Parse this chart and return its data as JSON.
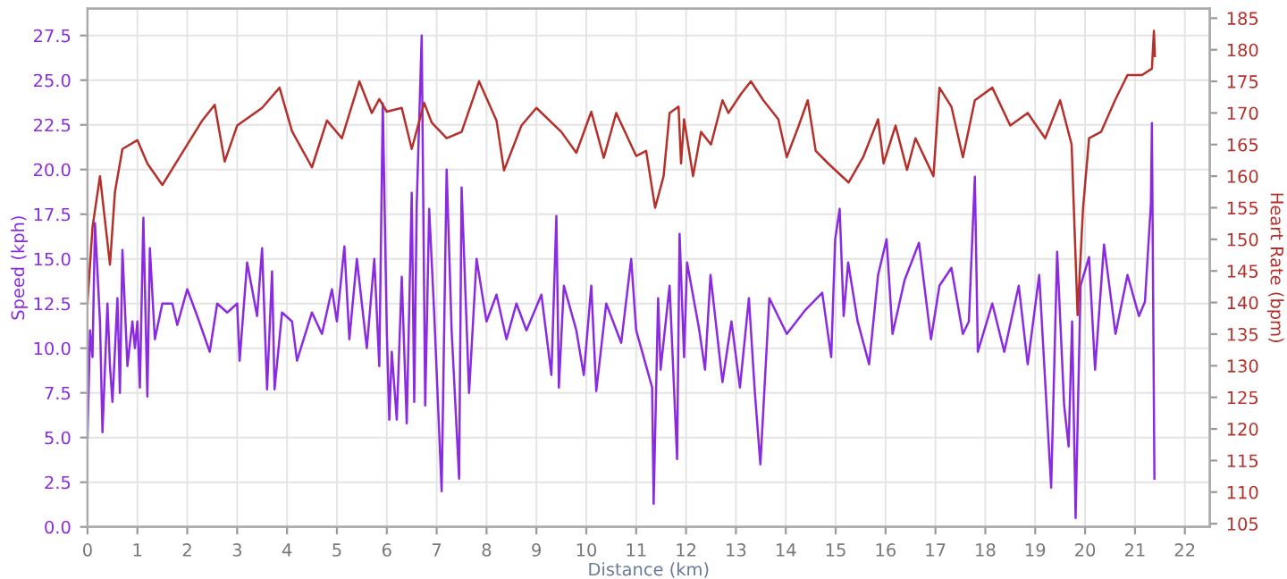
{
  "chart_data": {
    "type": "line",
    "xlabel": "Distance (km)",
    "ylabel": "Speed (kph)",
    "y2label": "Heart Rate (bpm)",
    "xlim": [
      0,
      22.5
    ],
    "xticks": [
      0,
      1,
      2,
      3,
      4,
      5,
      6,
      7,
      8,
      9,
      10,
      11,
      12,
      13,
      14,
      15,
      16,
      17,
      18,
      19,
      20,
      21,
      22
    ],
    "ylim": [
      0,
      29
    ],
    "yticks": [
      {
        "value": 0,
        "label": "0.0"
      },
      2.5,
      {
        "value": 5,
        "label": "5.0"
      },
      7.5,
      {
        "value": 10,
        "label": "10.0"
      },
      12.5,
      {
        "value": 15,
        "label": "15.0"
      },
      17.5,
      {
        "value": 20,
        "label": "20.0"
      },
      22.5,
      {
        "value": 25,
        "label": "25.0"
      },
      27.5
    ],
    "y2lim": [
      104.5,
      186.5
    ],
    "y2ticks": [
      105,
      110,
      115,
      120,
      125,
      130,
      135,
      140,
      145,
      150,
      155,
      160,
      165,
      170,
      175,
      180,
      185
    ],
    "grid": true,
    "legend": false,
    "line_style": "solid",
    "marker": "none",
    "series": [
      {
        "color": "#8a2be2",
        "axis": "y",
        "x": [
          0,
          0.05,
          0.1,
          0.15,
          0.25,
          0.3,
          0.4,
          0.45,
          0.5,
          0.6,
          0.65,
          0.7,
          0.8,
          0.9,
          0.95,
          1.0,
          1.05,
          1.12,
          1.2,
          1.25,
          1.35,
          1.5,
          1.7,
          1.8,
          2.0,
          2.2,
          2.45,
          2.6,
          2.8,
          3.0,
          3.05,
          3.2,
          3.4,
          3.5,
          3.6,
          3.7,
          3.75,
          3.9,
          4.1,
          4.2,
          4.5,
          4.7,
          4.9,
          5.0,
          5.15,
          5.25,
          5.4,
          5.6,
          5.75,
          5.85,
          5.92,
          6.0,
          6.05,
          6.1,
          6.2,
          6.3,
          6.4,
          6.5,
          6.55,
          6.6,
          6.7,
          6.77,
          6.85,
          6.95,
          7.1,
          7.2,
          7.3,
          7.45,
          7.5,
          7.65,
          7.8,
          8.0,
          8.2,
          8.4,
          8.6,
          8.8,
          9.1,
          9.3,
          9.4,
          9.45,
          9.55,
          9.8,
          9.95,
          10.1,
          10.2,
          10.4,
          10.7,
          10.9,
          11.0,
          11.32,
          11.35,
          11.44,
          11.49,
          11.67,
          11.82,
          11.87,
          11.96,
          12.02,
          12.26,
          12.38,
          12.49,
          12.73,
          12.91,
          13.08,
          13.26,
          13.38,
          13.49,
          13.67,
          14.02,
          14.38,
          14.73,
          14.91,
          14.99,
          15.08,
          15.16,
          15.25,
          15.44,
          15.67,
          15.85,
          16.02,
          16.14,
          16.38,
          16.67,
          16.91,
          17.08,
          17.32,
          17.55,
          17.67,
          17.79,
          17.85,
          18.14,
          18.38,
          18.67,
          18.85,
          19.08,
          19.32,
          19.44,
          19.58,
          19.67,
          19.74,
          19.81,
          19.91,
          20.08,
          20.2,
          20.38,
          20.61,
          20.85,
          21.08,
          21.2,
          21.32,
          21.34,
          21.39
        ],
        "values": [
          5,
          11,
          9.5,
          17,
          11.5,
          5.3,
          12.5,
          9,
          7,
          12.8,
          7.5,
          15.5,
          9,
          11.5,
          10,
          11.5,
          7.8,
          17.3,
          7.3,
          15.6,
          10.5,
          12.5,
          12.5,
          11.3,
          13.3,
          11.8,
          9.8,
          12.5,
          12,
          12.5,
          9.3,
          14.8,
          11.8,
          15.6,
          7.7,
          14.3,
          7.7,
          12,
          11.5,
          9.3,
          12,
          10.8,
          13.3,
          11.5,
          15.7,
          10.5,
          15,
          10,
          15,
          9,
          23.7,
          11,
          6,
          9.8,
          6,
          14,
          5.8,
          18.7,
          7,
          18,
          27.5,
          6.8,
          17.8,
          12,
          2,
          20,
          11,
          2.7,
          19,
          7.5,
          15,
          11.5,
          13,
          10.5,
          12.5,
          11,
          13,
          8.5,
          17.4,
          7.8,
          13.5,
          11,
          8.5,
          13.5,
          7.6,
          12.5,
          10.3,
          15,
          11,
          7.8,
          1.3,
          12.8,
          8.8,
          13.5,
          3.8,
          16.4,
          9.5,
          14.8,
          11.1,
          8.8,
          14.1,
          8.1,
          11.5,
          7.8,
          12.8,
          7.5,
          3.5,
          12.8,
          10.8,
          12.1,
          13.1,
          9.5,
          16.1,
          17.8,
          11.8,
          14.8,
          11.5,
          9.1,
          14.1,
          16.1,
          10.8,
          13.8,
          15.9,
          10.5,
          13.5,
          14.5,
          10.8,
          11.5,
          19.6,
          9.8,
          12.5,
          9.8,
          13.5,
          9.1,
          14.1,
          2.2,
          15.4,
          6.8,
          4.5,
          11.5,
          0.5,
          13.5,
          15.1,
          8.8,
          15.8,
          10.8,
          14.1,
          11.8,
          12.6,
          18.1,
          22.6,
          2.7
        ]
      },
      {
        "color": "#b5302a",
        "axis": "y2",
        "x": [
          0,
          0.1,
          0.25,
          0.45,
          0.55,
          0.7,
          1.0,
          1.2,
          1.5,
          2.0,
          2.3,
          2.55,
          2.75,
          3.0,
          3.5,
          3.85,
          4.1,
          4.5,
          4.8,
          5.1,
          5.45,
          5.7,
          5.85,
          6.0,
          6.3,
          6.5,
          6.75,
          6.9,
          7.2,
          7.5,
          7.85,
          8.2,
          8.35,
          8.7,
          9.0,
          9.5,
          9.8,
          10.1,
          10.35,
          10.6,
          11.0,
          11.2,
          11.38,
          11.55,
          11.67,
          11.85,
          11.9,
          11.96,
          12.14,
          12.3,
          12.5,
          12.73,
          12.85,
          13.1,
          13.3,
          13.55,
          13.85,
          14.02,
          14.26,
          14.44,
          14.6,
          14.85,
          15.26,
          15.55,
          15.85,
          15.96,
          16.2,
          16.43,
          16.6,
          16.96,
          17.08,
          17.32,
          17.55,
          17.79,
          18.14,
          18.5,
          18.85,
          19.2,
          19.5,
          19.73,
          19.85,
          19.96,
          20.08,
          20.32,
          20.6,
          20.85,
          21.14,
          21.34,
          21.38,
          21.4
        ],
        "values": [
          140,
          151.9,
          160,
          146,
          157.5,
          164.3,
          165.7,
          162,
          158.6,
          165,
          168.8,
          171.3,
          162.3,
          168,
          170.8,
          174,
          167.1,
          161.4,
          168.8,
          166,
          175,
          170,
          172.2,
          170.2,
          170.8,
          164.3,
          171.6,
          168.5,
          166,
          167,
          175,
          168.8,
          160.9,
          168,
          170.8,
          167,
          163.7,
          170.2,
          162.9,
          170,
          163.2,
          164,
          155,
          160,
          170,
          171,
          162,
          169,
          160,
          167,
          165,
          172,
          170,
          173,
          175,
          172,
          169,
          163,
          168,
          172,
          164,
          162,
          159,
          163,
          169,
          162,
          168,
          161,
          166,
          160,
          174,
          171,
          163,
          172,
          174,
          168,
          170,
          166,
          172,
          165,
          138,
          155,
          166,
          167,
          172,
          176,
          176,
          177,
          183,
          179
        ]
      }
    ]
  }
}
